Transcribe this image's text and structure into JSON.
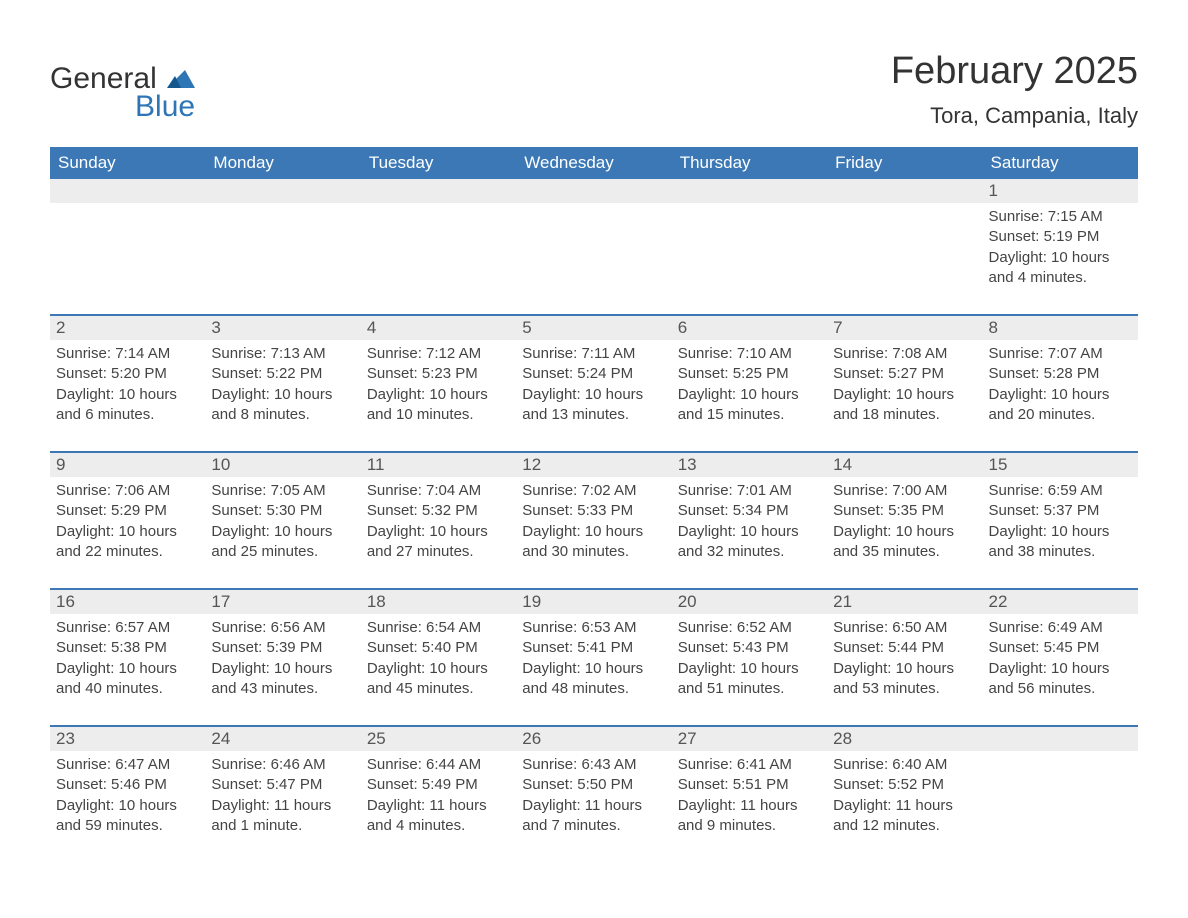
{
  "logo": {
    "word1": "General",
    "word2": "Blue",
    "color": "#2e75b6"
  },
  "title": "February 2025",
  "location": "Tora, Campania, Italy",
  "colors": {
    "header_bg": "#3b78b5",
    "header_text": "#ffffff",
    "daynum_bg": "#ededed",
    "text": "#333333",
    "detail_text": "#444444"
  },
  "day_headers": [
    "Sunday",
    "Monday",
    "Tuesday",
    "Wednesday",
    "Thursday",
    "Friday",
    "Saturday"
  ],
  "weeks": [
    [
      null,
      null,
      null,
      null,
      null,
      null,
      {
        "n": "1",
        "sunrise": "Sunrise: 7:15 AM",
        "sunset": "Sunset: 5:19 PM",
        "daylight1": "Daylight: 10 hours",
        "daylight2": "and 4 minutes."
      }
    ],
    [
      {
        "n": "2",
        "sunrise": "Sunrise: 7:14 AM",
        "sunset": "Sunset: 5:20 PM",
        "daylight1": "Daylight: 10 hours",
        "daylight2": "and 6 minutes."
      },
      {
        "n": "3",
        "sunrise": "Sunrise: 7:13 AM",
        "sunset": "Sunset: 5:22 PM",
        "daylight1": "Daylight: 10 hours",
        "daylight2": "and 8 minutes."
      },
      {
        "n": "4",
        "sunrise": "Sunrise: 7:12 AM",
        "sunset": "Sunset: 5:23 PM",
        "daylight1": "Daylight: 10 hours",
        "daylight2": "and 10 minutes."
      },
      {
        "n": "5",
        "sunrise": "Sunrise: 7:11 AM",
        "sunset": "Sunset: 5:24 PM",
        "daylight1": "Daylight: 10 hours",
        "daylight2": "and 13 minutes."
      },
      {
        "n": "6",
        "sunrise": "Sunrise: 7:10 AM",
        "sunset": "Sunset: 5:25 PM",
        "daylight1": "Daylight: 10 hours",
        "daylight2": "and 15 minutes."
      },
      {
        "n": "7",
        "sunrise": "Sunrise: 7:08 AM",
        "sunset": "Sunset: 5:27 PM",
        "daylight1": "Daylight: 10 hours",
        "daylight2": "and 18 minutes."
      },
      {
        "n": "8",
        "sunrise": "Sunrise: 7:07 AM",
        "sunset": "Sunset: 5:28 PM",
        "daylight1": "Daylight: 10 hours",
        "daylight2": "and 20 minutes."
      }
    ],
    [
      {
        "n": "9",
        "sunrise": "Sunrise: 7:06 AM",
        "sunset": "Sunset: 5:29 PM",
        "daylight1": "Daylight: 10 hours",
        "daylight2": "and 22 minutes."
      },
      {
        "n": "10",
        "sunrise": "Sunrise: 7:05 AM",
        "sunset": "Sunset: 5:30 PM",
        "daylight1": "Daylight: 10 hours",
        "daylight2": "and 25 minutes."
      },
      {
        "n": "11",
        "sunrise": "Sunrise: 7:04 AM",
        "sunset": "Sunset: 5:32 PM",
        "daylight1": "Daylight: 10 hours",
        "daylight2": "and 27 minutes."
      },
      {
        "n": "12",
        "sunrise": "Sunrise: 7:02 AM",
        "sunset": "Sunset: 5:33 PM",
        "daylight1": "Daylight: 10 hours",
        "daylight2": "and 30 minutes."
      },
      {
        "n": "13",
        "sunrise": "Sunrise: 7:01 AM",
        "sunset": "Sunset: 5:34 PM",
        "daylight1": "Daylight: 10 hours",
        "daylight2": "and 32 minutes."
      },
      {
        "n": "14",
        "sunrise": "Sunrise: 7:00 AM",
        "sunset": "Sunset: 5:35 PM",
        "daylight1": "Daylight: 10 hours",
        "daylight2": "and 35 minutes."
      },
      {
        "n": "15",
        "sunrise": "Sunrise: 6:59 AM",
        "sunset": "Sunset: 5:37 PM",
        "daylight1": "Daylight: 10 hours",
        "daylight2": "and 38 minutes."
      }
    ],
    [
      {
        "n": "16",
        "sunrise": "Sunrise: 6:57 AM",
        "sunset": "Sunset: 5:38 PM",
        "daylight1": "Daylight: 10 hours",
        "daylight2": "and 40 minutes."
      },
      {
        "n": "17",
        "sunrise": "Sunrise: 6:56 AM",
        "sunset": "Sunset: 5:39 PM",
        "daylight1": "Daylight: 10 hours",
        "daylight2": "and 43 minutes."
      },
      {
        "n": "18",
        "sunrise": "Sunrise: 6:54 AM",
        "sunset": "Sunset: 5:40 PM",
        "daylight1": "Daylight: 10 hours",
        "daylight2": "and 45 minutes."
      },
      {
        "n": "19",
        "sunrise": "Sunrise: 6:53 AM",
        "sunset": "Sunset: 5:41 PM",
        "daylight1": "Daylight: 10 hours",
        "daylight2": "and 48 minutes."
      },
      {
        "n": "20",
        "sunrise": "Sunrise: 6:52 AM",
        "sunset": "Sunset: 5:43 PM",
        "daylight1": "Daylight: 10 hours",
        "daylight2": "and 51 minutes."
      },
      {
        "n": "21",
        "sunrise": "Sunrise: 6:50 AM",
        "sunset": "Sunset: 5:44 PM",
        "daylight1": "Daylight: 10 hours",
        "daylight2": "and 53 minutes."
      },
      {
        "n": "22",
        "sunrise": "Sunrise: 6:49 AM",
        "sunset": "Sunset: 5:45 PM",
        "daylight1": "Daylight: 10 hours",
        "daylight2": "and 56 minutes."
      }
    ],
    [
      {
        "n": "23",
        "sunrise": "Sunrise: 6:47 AM",
        "sunset": "Sunset: 5:46 PM",
        "daylight1": "Daylight: 10 hours",
        "daylight2": "and 59 minutes."
      },
      {
        "n": "24",
        "sunrise": "Sunrise: 6:46 AM",
        "sunset": "Sunset: 5:47 PM",
        "daylight1": "Daylight: 11 hours",
        "daylight2": "and 1 minute."
      },
      {
        "n": "25",
        "sunrise": "Sunrise: 6:44 AM",
        "sunset": "Sunset: 5:49 PM",
        "daylight1": "Daylight: 11 hours",
        "daylight2": "and 4 minutes."
      },
      {
        "n": "26",
        "sunrise": "Sunrise: 6:43 AM",
        "sunset": "Sunset: 5:50 PM",
        "daylight1": "Daylight: 11 hours",
        "daylight2": "and 7 minutes."
      },
      {
        "n": "27",
        "sunrise": "Sunrise: 6:41 AM",
        "sunset": "Sunset: 5:51 PM",
        "daylight1": "Daylight: 11 hours",
        "daylight2": "and 9 minutes."
      },
      {
        "n": "28",
        "sunrise": "Sunrise: 6:40 AM",
        "sunset": "Sunset: 5:52 PM",
        "daylight1": "Daylight: 11 hours",
        "daylight2": "and 12 minutes."
      },
      null
    ]
  ]
}
